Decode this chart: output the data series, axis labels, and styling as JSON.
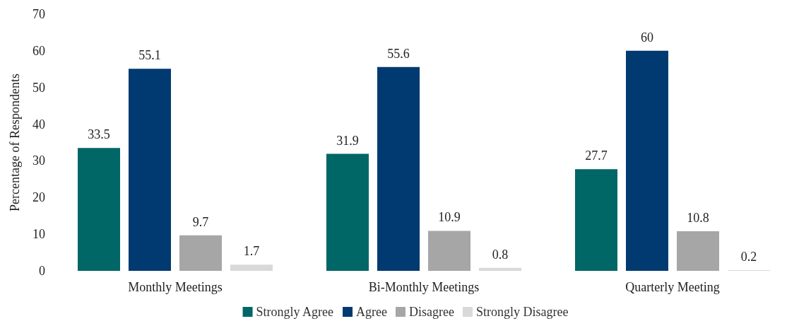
{
  "chart_data": {
    "type": "bar",
    "ylabel": "Percentage of Respondents",
    "categories": [
      "Monthly Meetings",
      "Bi-Monthly Meetings",
      "Quarterly Meeting"
    ],
    "series": [
      {
        "name": "Strongly Agree",
        "color": "#006666",
        "values": [
          33.5,
          31.9,
          27.7
        ]
      },
      {
        "name": "Agree",
        "color": "#003a70",
        "values": [
          55.1,
          55.6,
          60
        ]
      },
      {
        "name": "Disagree",
        "color": "#a6a6a6",
        "values": [
          9.7,
          10.9,
          10.8
        ]
      },
      {
        "name": "Strongly Disagree",
        "color": "#d9d9d9",
        "values": [
          1.7,
          0.8,
          0.2
        ]
      }
    ],
    "ylim": [
      0,
      70
    ],
    "yticks": [
      0,
      10,
      20,
      30,
      40,
      50,
      60,
      70
    ],
    "grid": false,
    "legend": "bottom",
    "data_labels": true
  }
}
